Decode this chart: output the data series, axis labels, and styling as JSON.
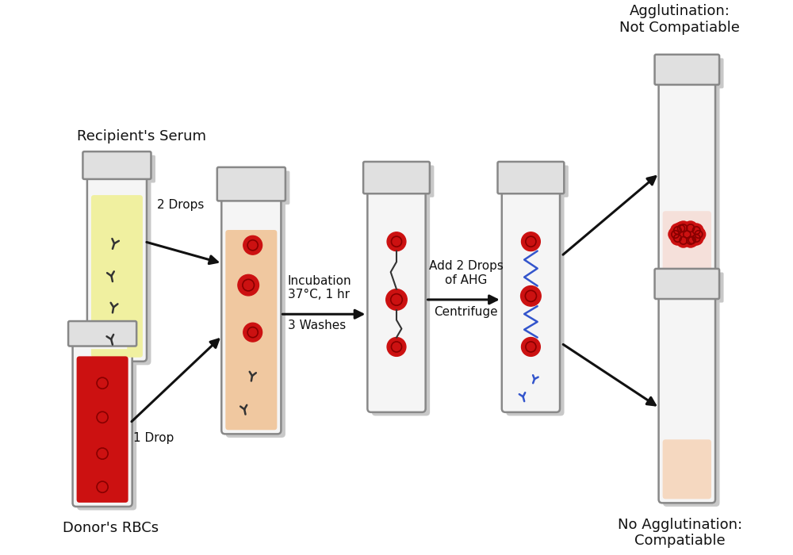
{
  "bg_color": "#ffffff",
  "tube_edge_color": "#888888",
  "tube_body_color": "#f5f5f5",
  "tube_neck_color": "#e0e0e0",
  "serum_color": "#f0f0a0",
  "rbc_fill_color": "#cc1111",
  "rbc_inner_color": "#991111",
  "mixed_color": "#f0c8a0",
  "agglutinated_bg": "#f5e0da",
  "compatible_bg": "#f5d8c0",
  "antibody_color": "#333333",
  "ahg_color": "#3355cc",
  "arrow_color": "#111111",
  "text_color": "#111111",
  "label_recipient": "Recipient's Serum",
  "label_donor": "Donor's RBCs",
  "label_2drops": "2 Drops",
  "label_1drop": "1 Drop",
  "label_incubation": "Incubation\n37°C, 1 hr",
  "label_3washes": "3 Washes",
  "label_ahg": "Add 2 Drops\nof AHG",
  "label_centrifuge": "Centrifuge",
  "label_agglutination": "Agglutination:\nNot Compatiable",
  "label_compatible": "No Agglutination:\nCompatiable",
  "fontsize_main": 13,
  "fontsize_step": 11
}
